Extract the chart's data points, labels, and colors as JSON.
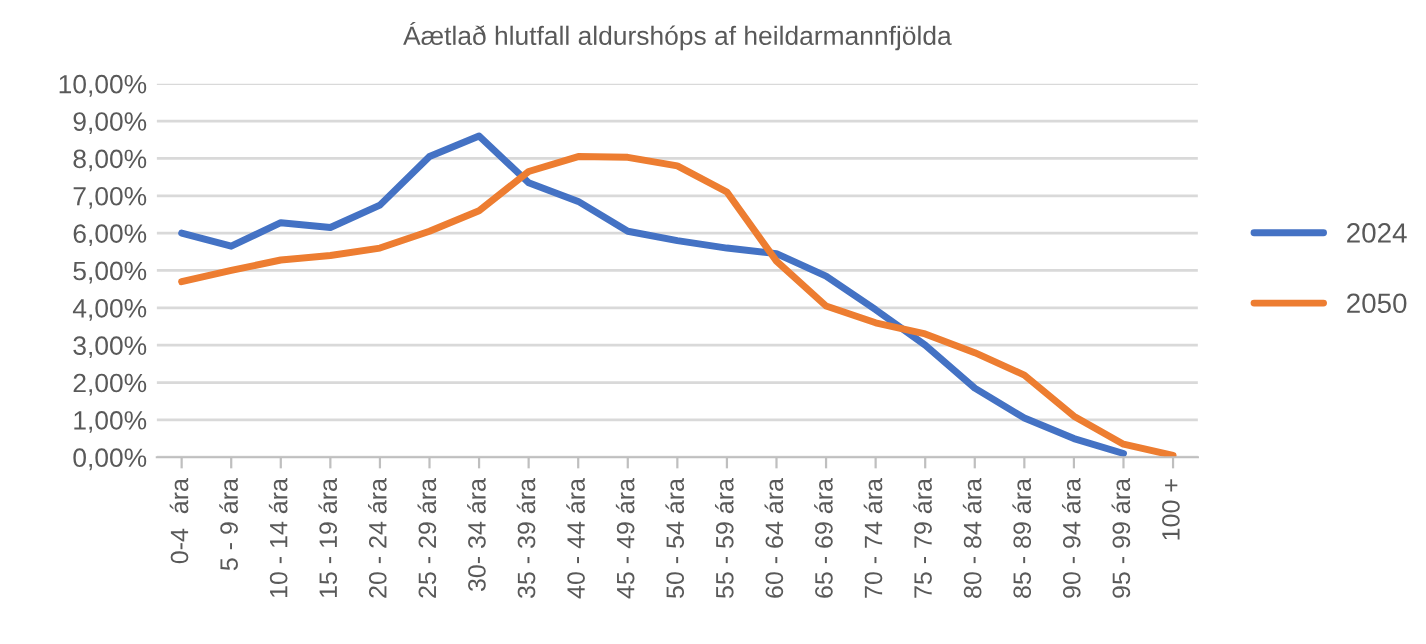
{
  "chart_data": {
    "type": "line",
    "title": "Áætlað hlutfall aldurshóps af heildarmannfjölda",
    "categories": [
      "0-4  ára",
      "5 - 9 ára",
      "10 - 14 ára",
      "15 - 19 ára",
      "20 - 24 ára",
      "25 - 29 ára",
      "30- 34 ára",
      "35 - 39 ára",
      "40 - 44 ára",
      "45 - 49 ára",
      "50 - 54 ára",
      "55 - 59 ára",
      "60 - 64 ára",
      "65 - 69 ára",
      "70 - 74 ára",
      "75 - 79 ára",
      "80 - 84 ára",
      "85 - 89 ára",
      "90 - 94 ára",
      "95 - 99 ára",
      "100 +"
    ],
    "series": [
      {
        "name": "2024",
        "color": "#4472c4",
        "values": [
          6.0,
          5.65,
          6.28,
          6.15,
          6.75,
          8.05,
          8.6,
          7.35,
          6.85,
          6.05,
          5.8,
          5.6,
          5.45,
          4.85,
          3.95,
          3.0,
          1.85,
          1.05,
          0.5,
          0.1,
          null
        ]
      },
      {
        "name": "2050",
        "color": "#ed7d31",
        "values": [
          4.7,
          5.0,
          5.28,
          5.4,
          5.6,
          6.05,
          6.6,
          7.65,
          8.05,
          8.03,
          7.8,
          7.1,
          5.25,
          4.05,
          3.6,
          3.3,
          2.8,
          2.2,
          1.1,
          0.35,
          0.05
        ]
      }
    ],
    "ylim": [
      0,
      10
    ],
    "yticks": [
      {
        "value": 0,
        "label": "0,00%"
      },
      {
        "value": 1,
        "label": "1,00%"
      },
      {
        "value": 2,
        "label": "2,00%"
      },
      {
        "value": 3,
        "label": "3,00%"
      },
      {
        "value": 4,
        "label": "4,00%"
      },
      {
        "value": 5,
        "label": "5,00%"
      },
      {
        "value": 6,
        "label": "6,00%"
      },
      {
        "value": 7,
        "label": "7,00%"
      },
      {
        "value": 8,
        "label": "8,00%"
      },
      {
        "value": 9,
        "label": "9,00%"
      },
      {
        "value": 10,
        "label": "10,00%"
      }
    ],
    "grid": "y",
    "legend": "right",
    "marker": "none",
    "line_style": "solid"
  }
}
